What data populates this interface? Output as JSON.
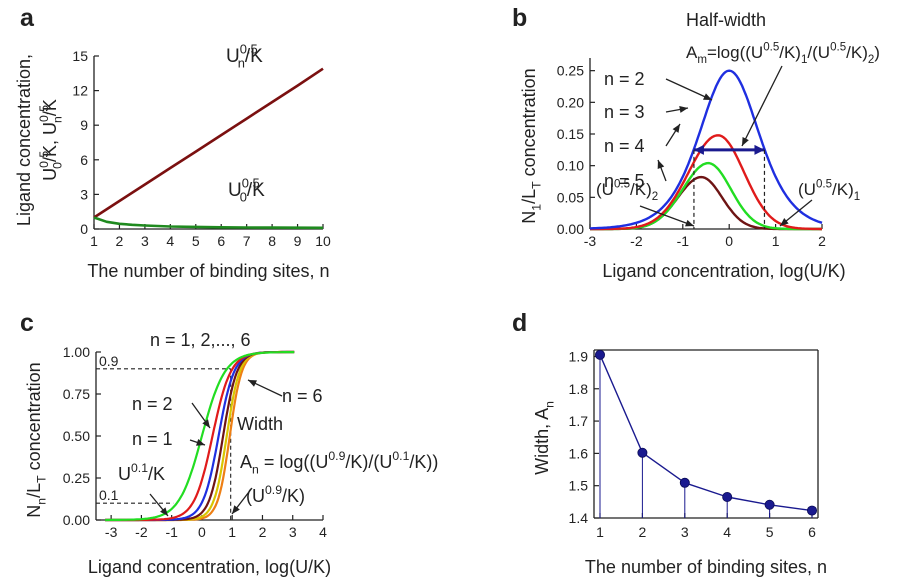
{
  "chart_data": [
    {
      "panel": "a",
      "type": "line",
      "xlabel": "The number of binding sites, n",
      "ylabel_parts": [
        "Ligand concentration,",
        "U",
        "0.5",
        "0",
        "/K, U",
        "0.5",
        "n",
        "/K"
      ],
      "xlim": [
        1,
        10
      ],
      "ylim": [
        0,
        15
      ],
      "xticks": [
        1,
        2,
        3,
        4,
        5,
        6,
        7,
        8,
        9,
        10
      ],
      "yticks": [
        0,
        3,
        6,
        9,
        12,
        15
      ],
      "series": [
        {
          "name_parts": [
            "U",
            "0.5",
            "n",
            "/K"
          ],
          "color": "#7b1010",
          "x": [
            1,
            2,
            3,
            4,
            5,
            6,
            7,
            8,
            9,
            10
          ],
          "y": [
            1.0,
            2.43,
            3.86,
            5.29,
            6.71,
            8.14,
            9.57,
            11.0,
            12.43,
            13.9
          ]
        },
        {
          "name_parts": [
            "U",
            "0.5",
            "0",
            "/K"
          ],
          "color": "#1f8a1f",
          "x": [
            1,
            1.5,
            2,
            2.5,
            3,
            4,
            5,
            6,
            7,
            8,
            9,
            10
          ],
          "y": [
            1.0,
            0.62,
            0.45,
            0.36,
            0.3,
            0.22,
            0.18,
            0.15,
            0.13,
            0.12,
            0.11,
            0.1
          ]
        }
      ]
    },
    {
      "panel": "b",
      "type": "line",
      "xlabel": "Ligand concentration, log(U/K)",
      "ylabel_parts": [
        "N",
        "1",
        "/L",
        "T",
        " concentration"
      ],
      "xlim": [
        -3,
        2
      ],
      "ylim": [
        0,
        0.27
      ],
      "xticks": [
        -3,
        -2,
        -1,
        0,
        1,
        2
      ],
      "yticks": [
        "0.00",
        "0.05",
        "0.10",
        "0.15",
        "0.20",
        "0.25"
      ],
      "series": [
        {
          "name": "n = 2",
          "color": "#1f2fe0",
          "peak_x": 0.0,
          "peak_y": 0.25
        },
        {
          "name": "n = 3",
          "color": "#e01b1b",
          "peak_x": -0.24,
          "peak_y": 0.148
        },
        {
          "name": "n = 4",
          "color": "#22dd22",
          "peak_x": -0.45,
          "peak_y": 0.104
        },
        {
          "name": "n = 5",
          "color": "#6e1414",
          "peak_x": -0.6,
          "peak_y": 0.082
        }
      ],
      "annotations": {
        "title": "Half-width",
        "formula_parts": [
          "A",
          "m",
          "=log((U",
          "0.5",
          "/K)",
          "1",
          "/(U",
          "0.5",
          "/K)",
          "2",
          ")"
        ],
        "left_marker_parts": [
          "(U",
          "0.5",
          "/K)",
          "2"
        ],
        "right_marker_parts": [
          "(U",
          "0.5",
          "/K)",
          "1"
        ],
        "halfwidth_x": [
          -0.76,
          0.76
        ],
        "halfwidth_y": 0.125
      }
    },
    {
      "panel": "c",
      "type": "line",
      "xlabel": "Ligand concentration, log(U/K)",
      "ylabel_parts": [
        "N",
        "n",
        "/L",
        "T",
        " concentration"
      ],
      "xlim": [
        -3.5,
        4
      ],
      "ylim": [
        0,
        1
      ],
      "xticks": [
        -3,
        -2,
        -1,
        0,
        1,
        2,
        3,
        4
      ],
      "yticks": [
        "0.00",
        "0.25",
        "0.50",
        "0.75",
        "1.00"
      ],
      "reference_levels": [
        "0.1",
        "0.9"
      ],
      "series": [
        {
          "name": "n = 1",
          "color": "#22dd22",
          "midpoint": 0.0
        },
        {
          "name": "n = 2",
          "color": "#e01b1b",
          "midpoint": 0.35
        },
        {
          "name": "n = 3",
          "color": "#1f2fe0",
          "midpoint": 0.55
        },
        {
          "name": "n = 4",
          "color": "#6e1414",
          "midpoint": 0.7
        },
        {
          "name": "n = 5",
          "color": "#d9c600",
          "midpoint": 0.82
        },
        {
          "name": "n = 6",
          "color": "#ee7f14",
          "midpoint": 0.92
        }
      ],
      "annotations": {
        "top": "n = 1, 2,..., 6",
        "n2": "n = 2",
        "n1": "n = 1",
        "n6": "n = 6",
        "width": "Width",
        "formula_parts": [
          "A",
          "n",
          " = log((U",
          "0.9",
          "/K)/(U",
          "0.1",
          "/K))"
        ],
        "u01_parts": [
          "U",
          "0.1",
          "/K"
        ],
        "u09_parts": [
          "(U",
          "0.9",
          "/K)"
        ]
      }
    },
    {
      "panel": "d",
      "type": "scatter",
      "xlabel": "The number of binding sites, n",
      "ylabel_parts": [
        "Width, A",
        "n"
      ],
      "xlim": [
        1,
        6
      ],
      "ylim": [
        1.4,
        1.9
      ],
      "xticks": [
        1,
        2,
        3,
        4,
        5,
        6
      ],
      "yticks": [
        "1.4",
        "1.5",
        "1.6",
        "1.7",
        "1.8",
        "1.9"
      ],
      "color": "#1a1a8f",
      "x": [
        1,
        2,
        3,
        4,
        5,
        6
      ],
      "y": [
        1.905,
        1.602,
        1.509,
        1.465,
        1.441,
        1.423
      ]
    }
  ]
}
